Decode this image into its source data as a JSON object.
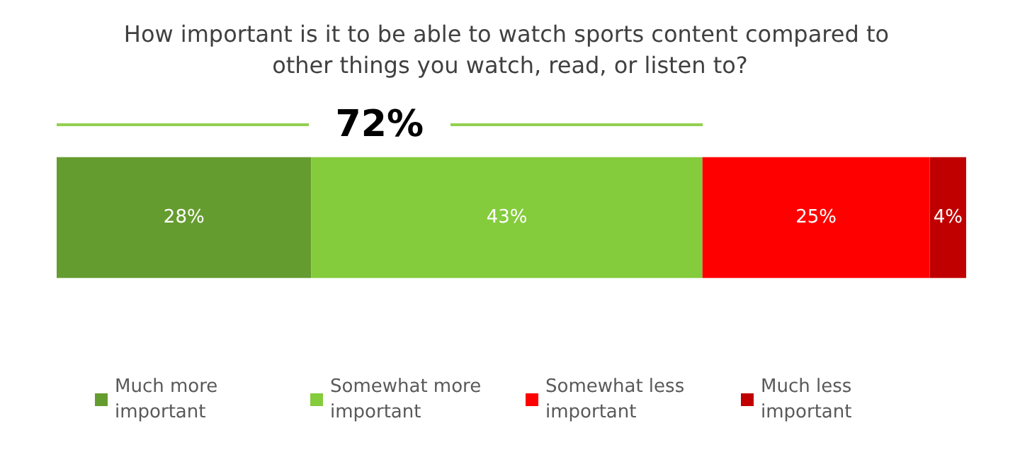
{
  "chart_data": {
    "type": "bar",
    "orientation": "horizontal",
    "stacked": true,
    "title": "How important is it to be able to watch sports content compared to other things you watch, read, or listen to?",
    "categories": [
      null
    ],
    "xlim": [
      0,
      100
    ],
    "legend": "bottom",
    "series": [
      {
        "name": "Much more important",
        "color": "#659c2f",
        "values": [
          28
        ],
        "value_labels": [
          "28%"
        ]
      },
      {
        "name": "Somewhat more important",
        "color": "#84cc3c",
        "values": [
          43
        ],
        "value_labels": [
          "43%"
        ]
      },
      {
        "name": "Somewhat less important",
        "color": "#ff0000",
        "values": [
          25
        ],
        "value_labels": [
          "25%"
        ]
      },
      {
        "name": "Much less important",
        "color": "#c00000",
        "values": [
          4
        ],
        "value_labels": [
          "4%"
        ]
      }
    ],
    "annotations": [
      "72%"
    ]
  }
}
